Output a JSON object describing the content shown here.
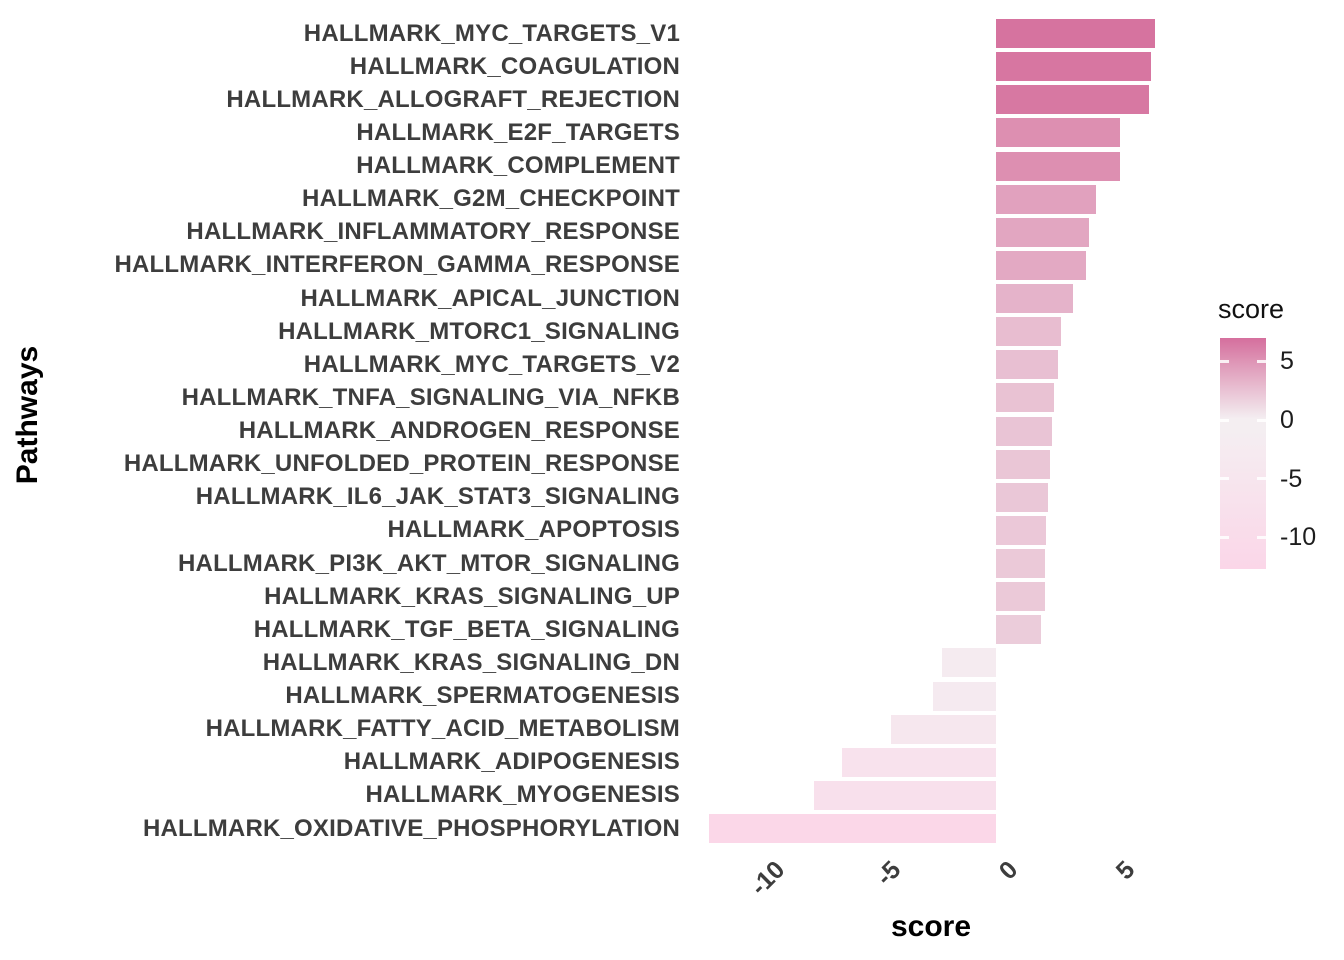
{
  "chart_data": {
    "type": "bar",
    "orientation": "horizontal",
    "title": "",
    "xlabel": "score",
    "ylabel": "Pathways",
    "x_tick_labels": [
      "-10",
      "-5",
      "0",
      "5"
    ],
    "x_tick_values": [
      -10,
      -5,
      0,
      5
    ],
    "xlim": [
      -13.3,
      7.7
    ],
    "grid": false,
    "legend": {
      "title": "score",
      "position": "right",
      "tick_labels": [
        "5",
        "0",
        "-5",
        "-10"
      ],
      "tick_values": [
        5,
        0,
        -5,
        -10
      ],
      "max": 7.0,
      "min": -12.7
    },
    "categories": [
      "HALLMARK_MYC_TARGETS_V1",
      "HALLMARK_COAGULATION",
      "HALLMARK_ALLOGRAFT_REJECTION",
      "HALLMARK_E2F_TARGETS",
      "HALLMARK_COMPLEMENT",
      "HALLMARK_G2M_CHECKPOINT",
      "HALLMARK_INFLAMMATORY_RESPONSE",
      "HALLMARK_INTERFERON_GAMMA_RESPONSE",
      "HALLMARK_APICAL_JUNCTION",
      "HALLMARK_MTORC1_SIGNALING",
      "HALLMARK_MYC_TARGETS_V2",
      "HALLMARK_TNFA_SIGNALING_VIA_NFKB",
      "HALLMARK_ANDROGEN_RESPONSE",
      "HALLMARK_UNFOLDED_PROTEIN_RESPONSE",
      "HALLMARK_IL6_JAK_STAT3_SIGNALING",
      "HALLMARK_APOPTOSIS",
      "HALLMARK_PI3K_AKT_MTOR_SIGNALING",
      "HALLMARK_KRAS_SIGNALING_UP",
      "HALLMARK_TGF_BETA_SIGNALING",
      "HALLMARK_KRAS_SIGNALING_DN",
      "HALLMARK_SPERMATOGENESIS",
      "HALLMARK_FATTY_ACID_METABOLISM",
      "HALLMARK_ADIPOGENESIS",
      "HALLMARK_MYOGENESIS",
      "HALLMARK_OXIDATIVE_PHOSPHORYLATION"
    ],
    "values": [
      6.8,
      6.65,
      6.55,
      5.3,
      5.3,
      4.3,
      4.0,
      3.85,
      3.3,
      2.8,
      2.65,
      2.5,
      2.4,
      2.3,
      2.25,
      2.15,
      2.1,
      2.1,
      1.95,
      -2.3,
      -2.7,
      -4.5,
      -6.6,
      -7.8,
      -12.3
    ]
  },
  "colors": {
    "bar_high": "#d6739f",
    "bar_mid": "#f4f0f2",
    "bar_low": "#fbd6e8",
    "high_anchor_value": 6.8,
    "low_anchor_value": -12.7,
    "axis_text": "#3d3d3d",
    "title_text": "#000000",
    "legend_text": "#1d1d1d",
    "background": "#ffffff"
  }
}
